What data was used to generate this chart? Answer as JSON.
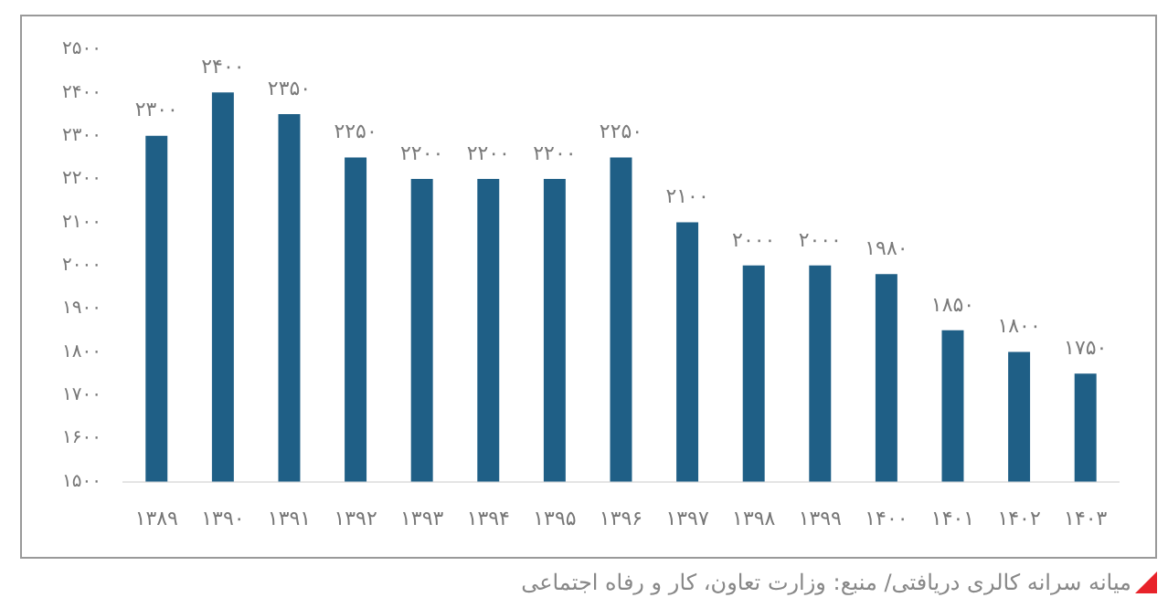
{
  "chart_data": {
    "type": "bar",
    "annotations": [
      "میانه سرانه کالری دریافتی/ منبع: وزارت تعاون، کار و رفاه اجتماعی"
    ],
    "categories": [
      "۱۳۸۹",
      "۱۳۹۰",
      "۱۳۹۱",
      "۱۳۹۲",
      "۱۳۹۳",
      "۱۳۹۴",
      "۱۳۹۵",
      "۱۳۹۶",
      "۱۳۹۷",
      "۱۳۹۸",
      "۱۳۹۹",
      "۱۴۰۰",
      "۱۴۰۱",
      "۱۴۰۲",
      "۱۴۰۳"
    ],
    "values": [
      2300,
      2400,
      2350,
      2250,
      2200,
      2200,
      2200,
      2250,
      2100,
      2000,
      2000,
      1980,
      1850,
      1800,
      1750
    ],
    "value_labels": [
      "۲۳۰۰",
      "۲۴۰۰",
      "۲۳۵۰",
      "۲۲۵۰",
      "۲۲۰۰",
      "۲۲۰۰",
      "۲۲۰۰",
      "۲۲۵۰",
      "۲۱۰۰",
      "۲۰۰۰",
      "۲۰۰۰",
      "۱۹۸۰",
      "۱۸۵۰",
      "۱۸۰۰",
      "۱۷۵۰"
    ],
    "color": "#1f5f86",
    "ylim": [
      1500,
      2500
    ],
    "yticks": [
      {
        "value": 1500,
        "label": "۱۵۰۰"
      },
      {
        "value": 1600,
        "label": "۱۶۰۰"
      },
      {
        "value": 1700,
        "label": "۱۷۰۰"
      },
      {
        "value": 1800,
        "label": "۱۸۰۰"
      },
      {
        "value": 1900,
        "label": "۱۹۰۰"
      },
      {
        "value": 2000,
        "label": "۲۰۰۰"
      },
      {
        "value": 2100,
        "label": "۲۱۰۰"
      },
      {
        "value": 2200,
        "label": "۲۲۰۰"
      },
      {
        "value": 2300,
        "label": "۲۳۰۰"
      },
      {
        "value": 2400,
        "label": "۲۴۰۰"
      },
      {
        "value": 2500,
        "label": "۲۵۰۰"
      }
    ],
    "grid": false,
    "legend": false
  }
}
